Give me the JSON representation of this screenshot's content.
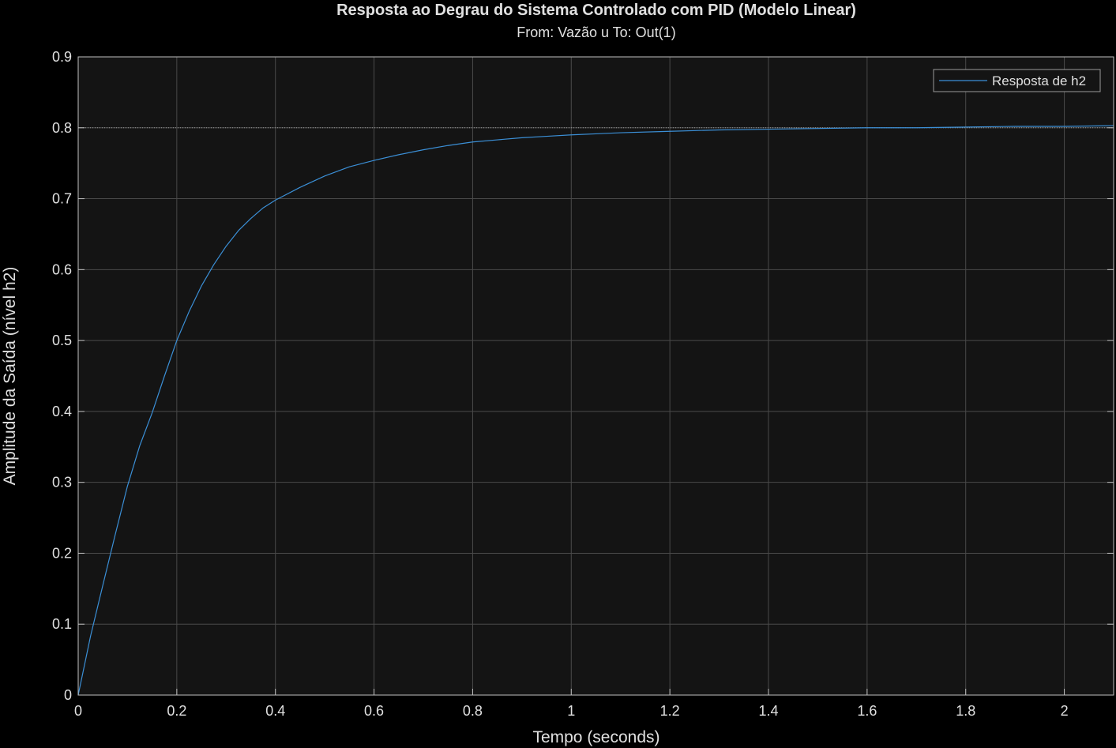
{
  "chart_data": {
    "type": "line",
    "title": "Resposta ao Degrau do Sistema Controlado com PID (Modelo Linear)",
    "subtitle": "From: Vazão u  To: Out(1)",
    "xlabel": "Tempo (seconds)",
    "ylabel": "Amplitude da Saída (nível h2)",
    "xlim": [
      0,
      2.1
    ],
    "ylim": [
      0,
      0.9
    ],
    "xticks": [
      0,
      0.2,
      0.4,
      0.6,
      0.8,
      1,
      1.2,
      1.4,
      1.6,
      1.8,
      2
    ],
    "xtick_labels": [
      "0",
      "0.2",
      "0.4",
      "0.6",
      "0.8",
      "1",
      "1.2",
      "1.4",
      "1.6",
      "1.8",
      "2"
    ],
    "yticks": [
      0,
      0.1,
      0.2,
      0.3,
      0.4,
      0.5,
      0.6,
      0.7,
      0.8,
      0.9
    ],
    "ytick_labels": [
      "0",
      "0.1",
      "0.2",
      "0.3",
      "0.4",
      "0.5",
      "0.6",
      "0.7",
      "0.8",
      "0.9"
    ],
    "grid": true,
    "legend_position": "top-right",
    "reference_line": {
      "y": 0.8,
      "style": "dotted"
    },
    "series": [
      {
        "name": "Resposta de h2",
        "color": "#3b8fd6",
        "x": [
          0,
          0.025,
          0.05,
          0.075,
          0.1,
          0.125,
          0.15,
          0.175,
          0.2,
          0.225,
          0.25,
          0.275,
          0.3,
          0.325,
          0.35,
          0.375,
          0.4,
          0.45,
          0.5,
          0.55,
          0.6,
          0.65,
          0.7,
          0.75,
          0.8,
          0.85,
          0.9,
          0.95,
          1.0,
          1.1,
          1.2,
          1.3,
          1.4,
          1.5,
          1.6,
          1.7,
          1.8,
          1.9,
          2.0,
          2.1
        ],
        "y": [
          0,
          0.083,
          0.155,
          0.226,
          0.295,
          0.352,
          0.398,
          0.45,
          0.5,
          0.541,
          0.577,
          0.607,
          0.633,
          0.655,
          0.672,
          0.687,
          0.698,
          0.716,
          0.732,
          0.745,
          0.754,
          0.762,
          0.769,
          0.775,
          0.78,
          0.783,
          0.786,
          0.788,
          0.79,
          0.793,
          0.795,
          0.797,
          0.798,
          0.799,
          0.8,
          0.8,
          0.801,
          0.802,
          0.802,
          0.803
        ]
      }
    ]
  },
  "colors": {
    "background": "#000000",
    "plot_area": "#141414",
    "grid": "#4a4a4a",
    "axis": "#bfbfbf",
    "text": "#e0e0e0",
    "legend_border": "#9a9a9a"
  }
}
